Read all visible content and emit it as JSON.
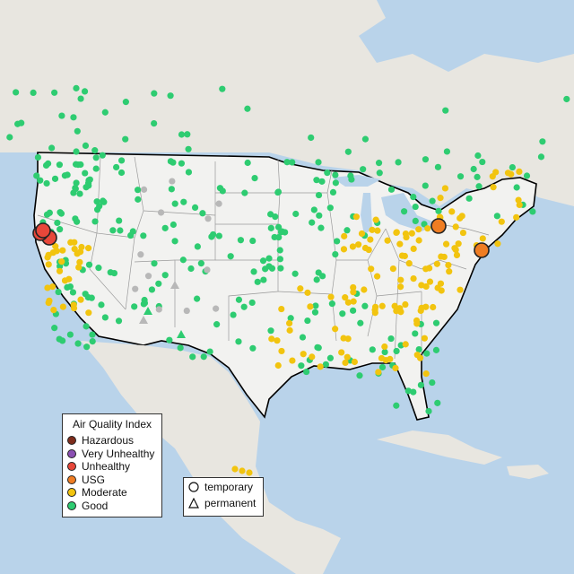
{
  "map": {
    "background_water": "#b9d3ea",
    "land_color": "#e8e6e0",
    "us_color": "#f2f2f0",
    "border_color": "#000000",
    "state_line_color": "#9a9a9a"
  },
  "legends": {
    "aqi": {
      "title": "Air Quality Index",
      "items": [
        {
          "label": "Hazardous",
          "color": "#7e2d1c"
        },
        {
          "label": "Very Unhealthy",
          "color": "#8b50b3"
        },
        {
          "label": "Unhealthy",
          "color": "#e8473a"
        },
        {
          "label": "USG",
          "color": "#ef7d23"
        },
        {
          "label": "Moderate",
          "color": "#f2c40f"
        },
        {
          "label": "Good",
          "color": "#2ecc71"
        }
      ]
    },
    "monitor_type": {
      "items": [
        {
          "label": "temporary",
          "shape": "circle-icon"
        },
        {
          "label": "permanent",
          "shape": "triangle-icon"
        }
      ]
    }
  }
}
